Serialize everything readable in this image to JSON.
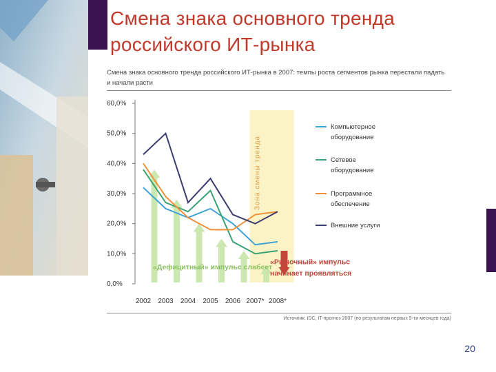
{
  "slide": {
    "title_line1": "Смена знака основного тренда",
    "title_line2": "российского ИТ-рынка",
    "page_number": "20"
  },
  "chart_data": {
    "type": "line",
    "title_line1": "Смена знака основного тренда российского ИТ-рынка в 2007: темпы роста сегментов рынка перестали падать",
    "title_line2": "и начали расти",
    "categories": [
      "2002",
      "2003",
      "2004",
      "2005",
      "2006",
      "2007*",
      "2008*"
    ],
    "ylim": [
      0,
      60
    ],
    "yticks": [
      "0,0%",
      "10,0%",
      "20,0%",
      "30,0%",
      "40,0%",
      "50,0%",
      "60,0%"
    ],
    "grid": false,
    "legend_position": "right",
    "series": [
      {
        "name": "Компьютерное оборудование",
        "color": "#3ea3d6",
        "values": [
          32,
          25,
          22,
          25,
          20,
          13,
          14
        ]
      },
      {
        "name": "Сетевое оборудование",
        "color": "#3aa376",
        "values": [
          38,
          27,
          24,
          31,
          14,
          10,
          11
        ]
      },
      {
        "name": "Программное обеспечение",
        "color": "#f0913a",
        "values": [
          40,
          29,
          22,
          18,
          18,
          23,
          24
        ]
      },
      {
        "name": "Внешние услуги",
        "color": "#3d3c6e",
        "values": [
          43,
          50,
          27,
          35,
          23,
          20,
          24
        ]
      }
    ],
    "annotations": {
      "zone_label": "Зона смены тренда",
      "deficit_label": "«Дефицитный» импульс слабеет",
      "market_label_1": "«Рыночный» импульс",
      "market_label_2": "начинает проявляться"
    },
    "deficit_arrows": [
      38,
      28,
      20,
      15,
      11,
      6
    ],
    "market_arrow": 11,
    "source": "Источник: IDC, IT-прогноз 2007 (по результатам первых 9-ти месяцев года)"
  }
}
